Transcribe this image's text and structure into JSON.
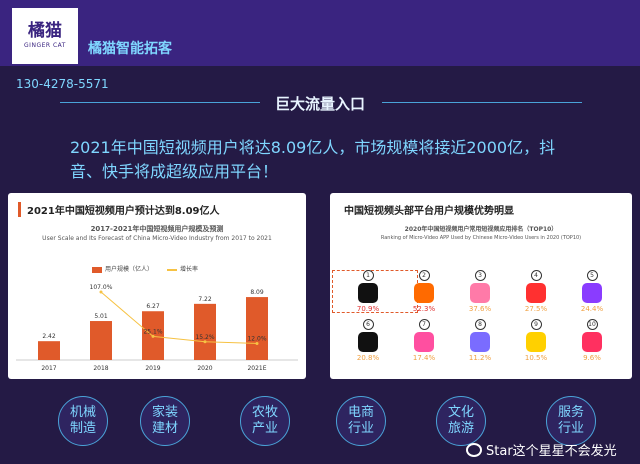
{
  "brand": {
    "logo_text": "橘猫",
    "logo_sub": "GINGER CAT",
    "name": "橘猫智能拓客",
    "phone": "130-4278-5571"
  },
  "section_title": "巨大流量入口",
  "headline": "2021年中国短视频用户将达8.09亿人，市场规模将接近2000亿，抖音、快手将成超级应用平台！",
  "left_card": {
    "title": "2021年中国短视频用户预计达到8.09亿人",
    "chart_title": "2017-2021年中国短视频用户规模及预测",
    "chart_subtitle": "User Scale and Its Forecast of China Micro-Video Industry from 2017 to 2021",
    "legend_bar": "用户规模（亿人）",
    "legend_line": "增长率"
  },
  "chart_data": {
    "type": "bar",
    "categories": [
      "2017",
      "2018",
      "2019",
      "2020",
      "2021E"
    ],
    "series": [
      {
        "name": "用户规模（亿人）",
        "values": [
          2.42,
          5.01,
          6.27,
          7.22,
          8.09
        ]
      },
      {
        "name": "增长率",
        "values": [
          null,
          107.0,
          25.1,
          15.2,
          12.0
        ]
      }
    ],
    "value_labels": [
      "2.42",
      "5.01",
      "6.27",
      "7.22",
      "8.09"
    ],
    "rate_labels": [
      "",
      "107.0%",
      "25.1%",
      "15.2%",
      "12.0%"
    ],
    "colors": {
      "bar": "#e05a2a",
      "line": "#f6c243"
    }
  },
  "right_card": {
    "title": "中国短视频头部平台用户规模优势明显",
    "chart_title": "2020年中国短视频用户常用短视频应用排名（TOP10）",
    "chart_subtitle": "Ranking of Micro-Video APP Used by Chinese Micro-Video Users in 2020 (TOP10)",
    "apps_row1": [
      {
        "rank": "1",
        "pct": "70.9%",
        "color": "#111111",
        "pct_color": "#e03030"
      },
      {
        "rank": "2",
        "pct": "52.3%",
        "color": "#ff6a00",
        "pct_color": "#e03030"
      },
      {
        "rank": "3",
        "pct": "37.6%",
        "color": "#ff7aa8",
        "pct_color": "#f0a040"
      },
      {
        "rank": "4",
        "pct": "27.5%",
        "color": "#ff3030",
        "pct_color": "#f0a040"
      },
      {
        "rank": "5",
        "pct": "24.4%",
        "color": "#8a3cff",
        "pct_color": "#f0a040"
      }
    ],
    "apps_row2": [
      {
        "rank": "6",
        "pct": "20.8%",
        "color": "#111111",
        "pct_color": "#f0a040"
      },
      {
        "rank": "7",
        "pct": "17.4%",
        "color": "#ff4fa0",
        "pct_color": "#f0a040"
      },
      {
        "rank": "8",
        "pct": "11.2%",
        "color": "#7a6cff",
        "pct_color": "#f0a040"
      },
      {
        "rank": "9",
        "pct": "10.5%",
        "color": "#ffd000",
        "pct_color": "#f0a040"
      },
      {
        "rank": "10",
        "pct": "9.6%",
        "color": "#ff3060",
        "pct_color": "#f0a040"
      }
    ]
  },
  "industries": [
    "机械\n制造",
    "家装\n建材",
    "农牧\n产业",
    "电商\n行业",
    "文化\n旅游",
    "服务\n行业"
  ],
  "watermark": "Star这个星星不会发光"
}
